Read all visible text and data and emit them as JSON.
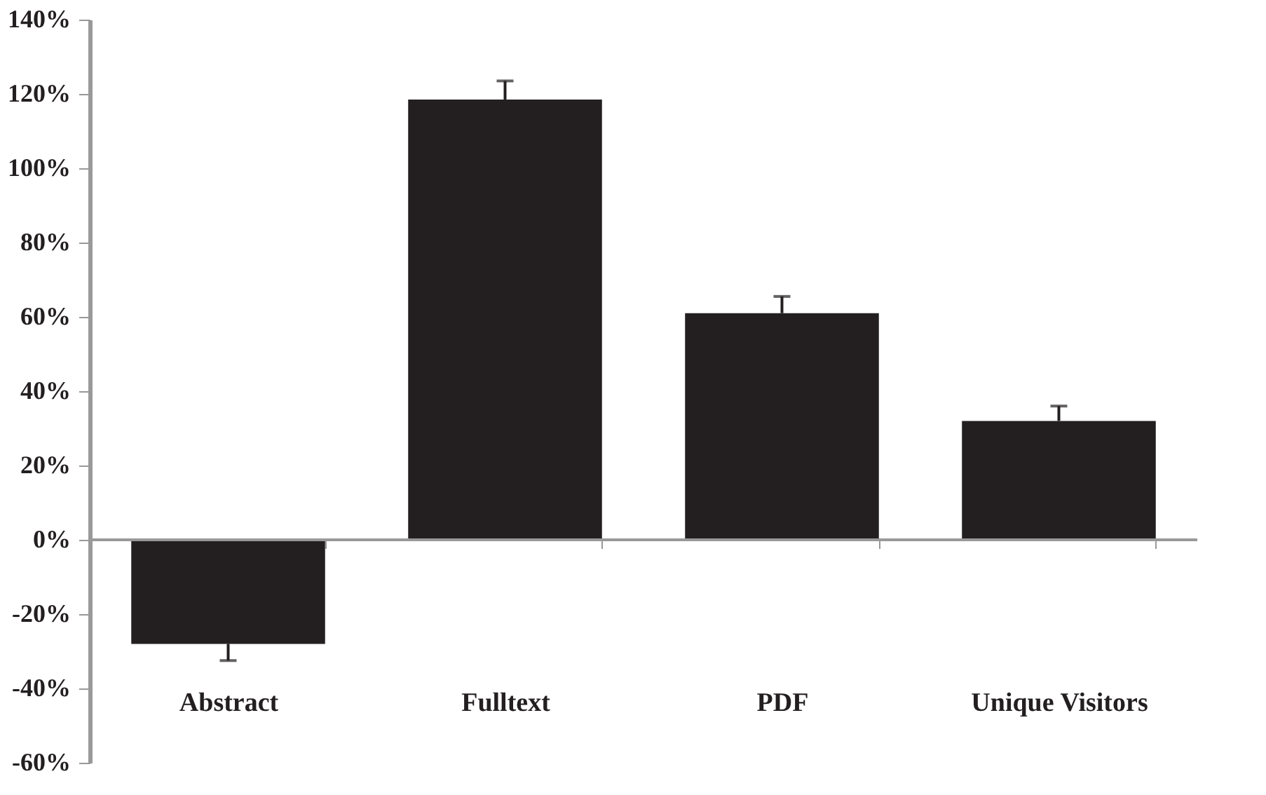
{
  "chart_data": {
    "type": "bar",
    "categories": [
      "Abstract",
      "Fulltext",
      "PDF",
      "Unique Visitors"
    ],
    "values": [
      -28,
      118.5,
      61,
      32
    ],
    "errors": [
      [
        -32.5,
        -28
      ],
      [
        118.5,
        123.5
      ],
      [
        61,
        65.5
      ],
      [
        32,
        36
      ]
    ],
    "color": "#231f20",
    "ylim": [
      -60,
      140
    ],
    "yticks": [
      {
        "value": -60,
        "label": "-60%"
      },
      {
        "value": -40,
        "label": "-40%"
      },
      {
        "value": -20,
        "label": "-20%"
      },
      {
        "value": 0,
        "label": "0%"
      },
      {
        "value": 20,
        "label": "20%"
      },
      {
        "value": 40,
        "label": "40%"
      },
      {
        "value": 60,
        "label": "60%"
      },
      {
        "value": 80,
        "label": "80%"
      },
      {
        "value": 100,
        "label": "100%"
      },
      {
        "value": 120,
        "label": "120%"
      },
      {
        "value": 140,
        "label": "140%"
      }
    ],
    "ref_lines": [
      {
        "axis": "y",
        "value": 0,
        "color": "#999999"
      }
    ],
    "grid": false
  }
}
